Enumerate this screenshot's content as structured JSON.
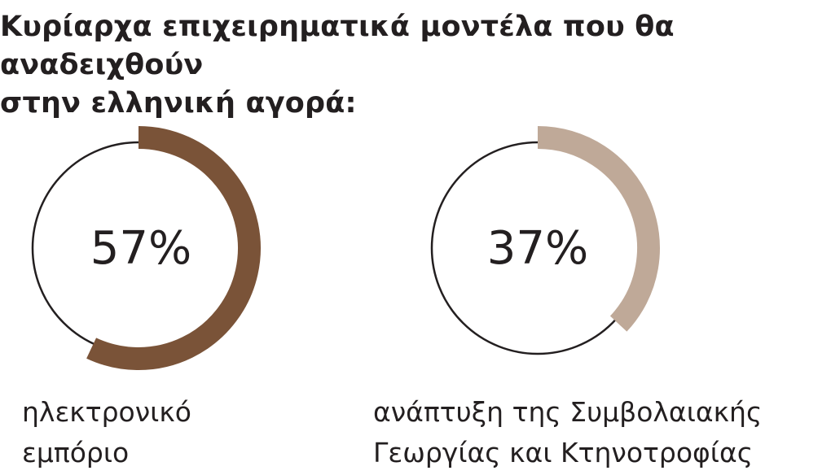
{
  "title": {
    "line1": "Κυρίαρχα επιχειρηματικά μοντέλα που θα αναδειχθούν",
    "line2": "στην ελληνική αγορά:"
  },
  "chart_data": [
    {
      "type": "pie",
      "value": 57,
      "value_text": "57%",
      "label_lines": [
        "ηλεκτρονικό",
        "εμπόριο"
      ],
      "color": "#7a5338"
    },
    {
      "type": "pie",
      "value": 37,
      "value_text": "37%",
      "label_lines": [
        "ανάπτυξη της Συμβολαιακής",
        "Γεωργίας και Κτηνοτροφίας"
      ],
      "color": "#bfa998"
    }
  ],
  "colors": {
    "ring_outline": "#231f20",
    "text": "#231f20"
  }
}
